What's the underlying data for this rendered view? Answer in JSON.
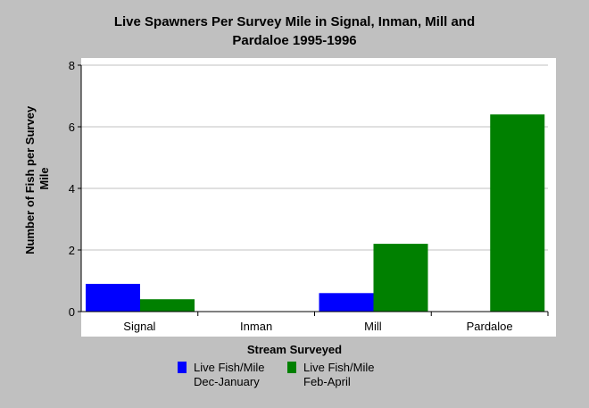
{
  "chart_data": {
    "type": "bar",
    "title_line1": "Live Spawners Per Survey Mile in Signal, Inman, Mill and",
    "title_line2": "Pardaloe 1995-1996",
    "xlabel": "Stream Surveyed",
    "ylabel_line1": "Number of Fish per Survey",
    "ylabel_line2": "Mile",
    "categories": [
      "Signal",
      "Inman",
      "Mill",
      "Pardaloe"
    ],
    "series": [
      {
        "name_line1": "Live Fish/Mile",
        "name_line2": "Dec-January",
        "color": "#0000ff",
        "values": [
          0.9,
          0,
          0.6,
          0
        ]
      },
      {
        "name_line1": "Live Fish/Mile",
        "name_line2": "Feb-April",
        "color": "#008000",
        "values": [
          0.4,
          0,
          2.2,
          6.4
        ]
      }
    ],
    "yticks": [
      "0",
      "2",
      "4",
      "6",
      "8"
    ],
    "ylim": [
      0,
      8
    ],
    "grid": true,
    "legend_position": "bottom",
    "background": "#c0c0c0",
    "plot_background": "#ffffff",
    "grid_color": "#c0c0c0"
  }
}
